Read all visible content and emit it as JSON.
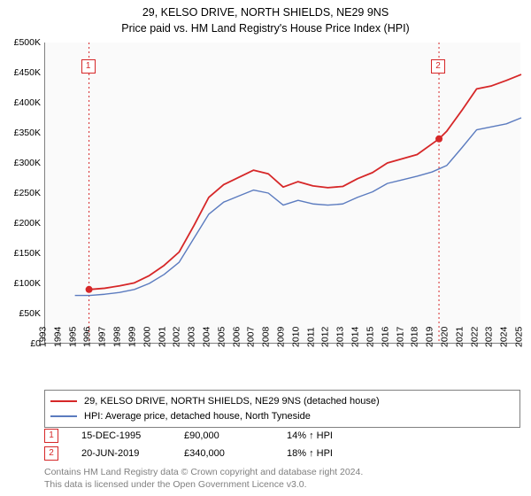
{
  "title": {
    "line1": "29, KELSO DRIVE, NORTH SHIELDS, NE29 9NS",
    "line2": "Price paid vs. HM Land Registry's House Price Index (HPI)",
    "fontsize": 12.5
  },
  "chart": {
    "type": "line",
    "background_color": "#fafafa",
    "axis_color": "#808080",
    "ylim": [
      0,
      500000
    ],
    "ytick_step": 50000,
    "yticks": [
      "£0",
      "£50K",
      "£100K",
      "£150K",
      "£200K",
      "£250K",
      "£300K",
      "£350K",
      "£400K",
      "£450K",
      "£500K"
    ],
    "xlim": [
      1993,
      2025
    ],
    "xticks": [
      1993,
      1994,
      1995,
      1996,
      1997,
      1998,
      1999,
      2000,
      2001,
      2002,
      2003,
      2004,
      2005,
      2006,
      2007,
      2008,
      2009,
      2010,
      2011,
      2012,
      2013,
      2014,
      2015,
      2016,
      2017,
      2018,
      2019,
      2020,
      2021,
      2022,
      2023,
      2024,
      2025
    ],
    "axis_label_fontsize": 10.5,
    "series": [
      {
        "name": "HPI: Average price, detached house, North Tyneside",
        "color": "#5b7bbf",
        "width": 1.4,
        "data": [
          [
            1995.0,
            80000
          ],
          [
            1996,
            80000
          ],
          [
            1997,
            82000
          ],
          [
            1998,
            85000
          ],
          [
            1999,
            90000
          ],
          [
            2000,
            100000
          ],
          [
            2001,
            115000
          ],
          [
            2002,
            135000
          ],
          [
            2003,
            175000
          ],
          [
            2004,
            215000
          ],
          [
            2005,
            235000
          ],
          [
            2006,
            245000
          ],
          [
            2007,
            255000
          ],
          [
            2008,
            250000
          ],
          [
            2009,
            230000
          ],
          [
            2010,
            238000
          ],
          [
            2011,
            232000
          ],
          [
            2012,
            230000
          ],
          [
            2013,
            232000
          ],
          [
            2014,
            243000
          ],
          [
            2015,
            252000
          ],
          [
            2016,
            266000
          ],
          [
            2017,
            272000
          ],
          [
            2018,
            278000
          ],
          [
            2019,
            285000
          ],
          [
            2020,
            296000
          ],
          [
            2021,
            325000
          ],
          [
            2022,
            355000
          ],
          [
            2023,
            360000
          ],
          [
            2024,
            365000
          ],
          [
            2025,
            375000
          ]
        ]
      },
      {
        "name": "29, KELSO DRIVE, NORTH SHIELDS, NE29 9NS (detached house)",
        "color": "#d62728",
        "width": 1.8,
        "data": [
          [
            1995.95,
            90000
          ],
          [
            1996,
            90000
          ],
          [
            1997,
            92000
          ],
          [
            1998,
            96000
          ],
          [
            1999,
            101000
          ],
          [
            2000,
            113000
          ],
          [
            2001,
            130000
          ],
          [
            2002,
            152000
          ],
          [
            2003,
            196000
          ],
          [
            2004,
            243000
          ],
          [
            2005,
            264000
          ],
          [
            2006,
            276000
          ],
          [
            2007,
            288000
          ],
          [
            2008,
            282000
          ],
          [
            2009,
            260000
          ],
          [
            2010,
            269000
          ],
          [
            2011,
            262000
          ],
          [
            2012,
            259000
          ],
          [
            2013,
            261000
          ],
          [
            2014,
            274000
          ],
          [
            2015,
            284000
          ],
          [
            2016,
            300000
          ],
          [
            2017,
            307000
          ],
          [
            2018,
            314000
          ],
          [
            2019.47,
            340000
          ],
          [
            2020,
            353000
          ],
          [
            2021,
            387000
          ],
          [
            2022,
            423000
          ],
          [
            2023,
            428000
          ],
          [
            2024,
            437000
          ],
          [
            2025,
            447000
          ]
        ]
      }
    ],
    "markers": [
      {
        "label": "1",
        "x": 1995.95,
        "y": 90000,
        "vline_color": "#d62728",
        "box_border": "#d62728",
        "text_color": "#d62728",
        "box_y": 460000
      },
      {
        "label": "2",
        "x": 2019.47,
        "y": 340000,
        "vline_color": "#d62728",
        "box_border": "#d62728",
        "text_color": "#d62728",
        "box_y": 460000
      }
    ]
  },
  "legend": {
    "border_color": "#808080",
    "fontsize": 11,
    "items": [
      {
        "color": "#d62728",
        "label": "29, KELSO DRIVE, NORTH SHIELDS, NE29 9NS (detached house)"
      },
      {
        "color": "#5b7bbf",
        "label": "HPI: Average price, detached house, North Tyneside"
      }
    ]
  },
  "data_points": [
    {
      "marker": "1",
      "marker_color": "#d62728",
      "date": "15-DEC-1995",
      "price": "£90,000",
      "pct": "14% ↑ HPI"
    },
    {
      "marker": "2",
      "marker_color": "#d62728",
      "date": "20-JUN-2019",
      "price": "£340,000",
      "pct": "18% ↑ HPI"
    }
  ],
  "footer": {
    "line1": "Contains HM Land Registry data © Crown copyright and database right 2024.",
    "line2": "This data is licensed under the Open Government Licence v3.0.",
    "color": "#808080",
    "fontsize": 10.5
  }
}
